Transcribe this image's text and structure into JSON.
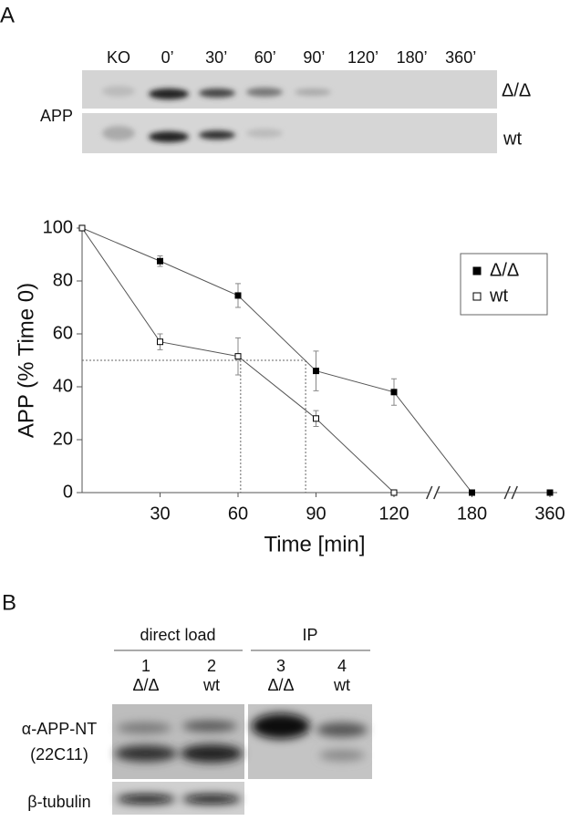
{
  "panel_a": {
    "label": "A",
    "lanes": [
      "KO",
      "0’",
      "30’",
      "60’",
      "90’",
      "120’",
      "180’",
      "360’"
    ],
    "blot_label": "APP",
    "rows": [
      "Δ/Δ",
      "wt"
    ]
  },
  "chart_data": {
    "type": "line",
    "ylabel": "APP (% Time 0)",
    "xlabel": "Time [min]",
    "x": [
      0,
      30,
      60,
      90,
      120,
      180,
      360
    ],
    "series": [
      {
        "name": "Δ/Δ",
        "color": "#000000",
        "marker": "filled",
        "values": [
          100,
          87.5,
          74.5,
          46,
          38,
          0,
          0
        ],
        "errors": [
          null,
          2,
          4.5,
          7.5,
          5,
          null,
          null
        ]
      },
      {
        "name": "wt",
        "color": "#000000",
        "marker": "open",
        "values": [
          100,
          57,
          51.5,
          28,
          0,
          null,
          null
        ],
        "errors": [
          null,
          3,
          7,
          3,
          null,
          null,
          null
        ]
      }
    ],
    "xlim": [
      0,
      360
    ],
    "xticks": [
      30,
      60,
      90,
      120,
      180,
      360
    ],
    "x_breaks": true,
    "ylim": [
      0,
      100
    ],
    "yticks": [
      0,
      20,
      40,
      60,
      80,
      100
    ],
    "half_life": {
      "y": 50,
      "x": [
        61,
        86
      ]
    },
    "legend": "upper right"
  },
  "panel_b": {
    "label": "B",
    "groups": [
      "direct load",
      "IP"
    ],
    "lanes": [
      [
        "1",
        "Δ/Δ"
      ],
      [
        "2",
        "wt"
      ],
      [
        "3",
        "Δ/Δ"
      ],
      [
        "4",
        "wt"
      ]
    ],
    "antibody": [
      "α-APP-NT",
      "(22C11)"
    ],
    "control": "β-tubulin"
  }
}
